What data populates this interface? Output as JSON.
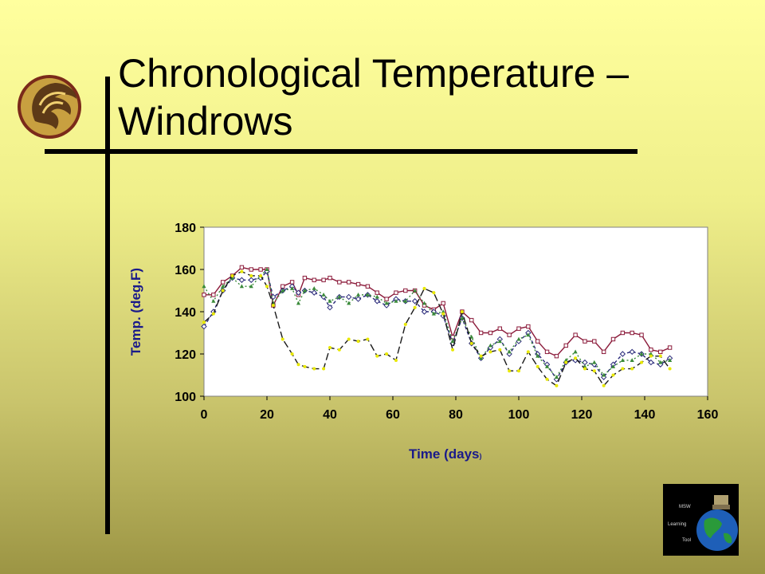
{
  "slide": {
    "title_line1": "Chronological Temperature –",
    "title_line2": "Windrows",
    "logo_icon": "pegasus-logo-icon",
    "msw_icon": "msw-learning-tool-icon",
    "msw_text": [
      "MSW",
      "Learning",
      "Tool"
    ]
  },
  "chart_data": {
    "type": "line",
    "title": "",
    "xlabel_main": "Time (days",
    "xlabel_tail": ")",
    "ylabel": "Temp. (deg.F)",
    "xlim": [
      0,
      160
    ],
    "ylim": [
      100,
      180
    ],
    "xticks": [
      0,
      20,
      40,
      60,
      80,
      100,
      120,
      140,
      160
    ],
    "yticks": [
      100,
      120,
      140,
      160,
      180
    ],
    "grid": false,
    "legend": "none",
    "series": [
      {
        "color": "#8b1a3a",
        "marker": "square",
        "dash": "none",
        "points": [
          [
            0,
            148
          ],
          [
            3,
            148
          ],
          [
            6,
            154
          ],
          [
            9,
            157
          ],
          [
            12,
            161
          ],
          [
            15,
            160
          ],
          [
            18,
            160
          ],
          [
            20,
            160
          ],
          [
            22,
            143
          ],
          [
            25,
            152
          ],
          [
            28,
            154
          ],
          [
            30,
            148
          ],
          [
            32,
            156
          ],
          [
            35,
            155
          ],
          [
            38,
            155
          ],
          [
            40,
            156
          ],
          [
            43,
            154
          ],
          [
            46,
            154
          ],
          [
            49,
            153
          ],
          [
            52,
            152
          ],
          [
            55,
            149
          ],
          [
            58,
            146
          ],
          [
            61,
            149
          ],
          [
            64,
            150
          ],
          [
            67,
            150
          ],
          [
            70,
            143
          ],
          [
            73,
            141
          ],
          [
            76,
            144
          ],
          [
            79,
            128
          ],
          [
            82,
            140
          ],
          [
            85,
            136
          ],
          [
            88,
            130
          ],
          [
            91,
            130
          ],
          [
            94,
            132
          ],
          [
            97,
            129
          ],
          [
            100,
            132
          ],
          [
            103,
            133
          ],
          [
            106,
            126
          ],
          [
            109,
            121
          ],
          [
            112,
            119
          ],
          [
            115,
            124
          ],
          [
            118,
            129
          ],
          [
            121,
            126
          ],
          [
            124,
            126
          ],
          [
            127,
            121
          ],
          [
            130,
            127
          ],
          [
            133,
            130
          ],
          [
            136,
            130
          ],
          [
            139,
            129
          ],
          [
            142,
            122
          ],
          [
            145,
            121
          ],
          [
            148,
            123
          ]
        ]
      },
      {
        "color": "#2a2a7a",
        "marker": "diamond",
        "dash": "4,3",
        "points": [
          [
            0,
            133
          ],
          [
            3,
            140
          ],
          [
            6,
            150
          ],
          [
            9,
            156
          ],
          [
            12,
            155
          ],
          [
            15,
            155
          ],
          [
            18,
            156
          ],
          [
            20,
            159
          ],
          [
            22,
            147
          ],
          [
            25,
            150
          ],
          [
            28,
            152
          ],
          [
            30,
            149
          ],
          [
            32,
            150
          ],
          [
            35,
            149
          ],
          [
            38,
            147
          ],
          [
            40,
            142
          ],
          [
            43,
            147
          ],
          [
            46,
            147
          ],
          [
            49,
            146
          ],
          [
            52,
            148
          ],
          [
            55,
            145
          ],
          [
            58,
            143
          ],
          [
            61,
            146
          ],
          [
            64,
            145
          ],
          [
            67,
            145
          ],
          [
            70,
            140
          ],
          [
            73,
            140
          ],
          [
            76,
            138
          ],
          [
            79,
            125
          ],
          [
            82,
            137
          ],
          [
            85,
            125
          ],
          [
            88,
            118
          ],
          [
            91,
            123
          ],
          [
            94,
            127
          ],
          [
            97,
            120
          ],
          [
            100,
            126
          ],
          [
            103,
            130
          ],
          [
            106,
            120
          ],
          [
            109,
            115
          ],
          [
            112,
            108
          ],
          [
            115,
            116
          ],
          [
            118,
            117
          ],
          [
            121,
            116
          ],
          [
            124,
            115
          ],
          [
            127,
            109
          ],
          [
            130,
            115
          ],
          [
            133,
            120
          ],
          [
            136,
            121
          ],
          [
            139,
            120
          ],
          [
            142,
            116
          ],
          [
            145,
            115
          ],
          [
            148,
            118
          ]
        ]
      },
      {
        "color": "#3a8a3a",
        "marker": "triangle",
        "dash": "2,3",
        "points": [
          [
            0,
            152
          ],
          [
            3,
            145
          ],
          [
            6,
            152
          ],
          [
            9,
            156
          ],
          [
            12,
            152
          ],
          [
            15,
            152
          ],
          [
            18,
            157
          ],
          [
            20,
            160
          ],
          [
            22,
            144
          ],
          [
            25,
            150
          ],
          [
            28,
            151
          ],
          [
            30,
            144
          ],
          [
            32,
            150
          ],
          [
            35,
            151
          ],
          [
            38,
            148
          ],
          [
            40,
            145
          ],
          [
            43,
            147
          ],
          [
            46,
            144
          ],
          [
            49,
            148
          ],
          [
            52,
            148
          ],
          [
            55,
            147
          ],
          [
            58,
            144
          ],
          [
            61,
            145
          ],
          [
            64,
            145
          ],
          [
            67,
            150
          ],
          [
            70,
            144
          ],
          [
            73,
            139
          ],
          [
            76,
            140
          ],
          [
            79,
            126
          ],
          [
            82,
            137
          ],
          [
            85,
            128
          ],
          [
            88,
            118
          ],
          [
            91,
            124
          ],
          [
            94,
            126
          ],
          [
            97,
            121
          ],
          [
            100,
            127
          ],
          [
            103,
            129
          ],
          [
            106,
            119
          ],
          [
            109,
            114
          ],
          [
            112,
            109
          ],
          [
            115,
            117
          ],
          [
            118,
            121
          ],
          [
            121,
            114
          ],
          [
            124,
            116
          ],
          [
            127,
            110
          ],
          [
            130,
            114
          ],
          [
            133,
            117
          ],
          [
            136,
            117
          ],
          [
            139,
            120
          ],
          [
            142,
            120
          ],
          [
            145,
            116
          ],
          [
            148,
            117
          ]
        ]
      },
      {
        "color": "#1a1a1a",
        "marker": "circle",
        "markerColor": "#e8e800",
        "dash": "9,4",
        "points": [
          [
            0,
            135
          ],
          [
            3,
            139
          ],
          [
            6,
            150
          ],
          [
            9,
            157
          ],
          [
            12,
            159
          ],
          [
            15,
            157
          ],
          [
            18,
            157
          ],
          [
            20,
            152
          ],
          [
            22,
            143
          ],
          [
            25,
            127
          ],
          [
            28,
            120
          ],
          [
            30,
            115
          ],
          [
            32,
            114
          ],
          [
            35,
            113
          ],
          [
            38,
            113
          ],
          [
            40,
            123
          ],
          [
            43,
            122
          ],
          [
            46,
            127
          ],
          [
            49,
            126
          ],
          [
            52,
            127
          ],
          [
            55,
            119
          ],
          [
            58,
            120
          ],
          [
            61,
            117
          ],
          [
            64,
            134
          ],
          [
            67,
            142
          ],
          [
            70,
            151
          ],
          [
            73,
            149
          ],
          [
            76,
            139
          ],
          [
            79,
            122
          ],
          [
            82,
            140
          ],
          [
            85,
            125
          ],
          [
            88,
            119
          ],
          [
            91,
            121
          ],
          [
            94,
            122
          ],
          [
            97,
            112
          ],
          [
            100,
            112
          ],
          [
            103,
            121
          ],
          [
            106,
            114
          ],
          [
            109,
            108
          ],
          [
            112,
            105
          ],
          [
            115,
            116
          ],
          [
            118,
            118
          ],
          [
            121,
            113
          ],
          [
            124,
            112
          ],
          [
            127,
            105
          ],
          [
            130,
            110
          ],
          [
            133,
            113
          ],
          [
            136,
            113
          ],
          [
            139,
            116
          ],
          [
            142,
            119
          ],
          [
            145,
            119
          ],
          [
            148,
            113
          ]
        ]
      }
    ]
  }
}
